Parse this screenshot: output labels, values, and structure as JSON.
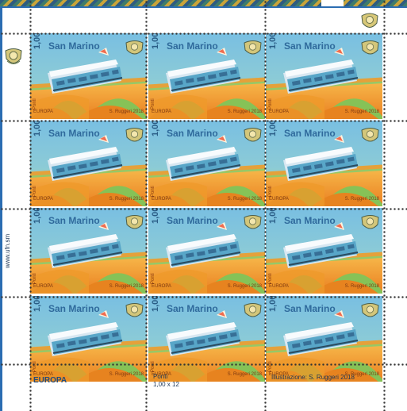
{
  "margin": {
    "website": "www.ufn.sm",
    "europa": "EUROPA",
    "ponti": "Ponti",
    "ponti_count": "1,00 x 12",
    "illustration": "Illustrazione: S. Ruggeri 2018"
  },
  "stamp": {
    "country": "San Marino",
    "value": "1,00",
    "title": "Ponti",
    "europa": "EUROPA",
    "credit": "S. Ruggeri 2018"
  },
  "colors": {
    "sky_top": "#79bfe2",
    "sky_bottom": "#b8dd84",
    "arch": "#e98a24",
    "arch_light": "#f3b046",
    "train_body": "#58a6c8",
    "train_roof": "#f4f7f9",
    "border": "#2b6db2"
  }
}
